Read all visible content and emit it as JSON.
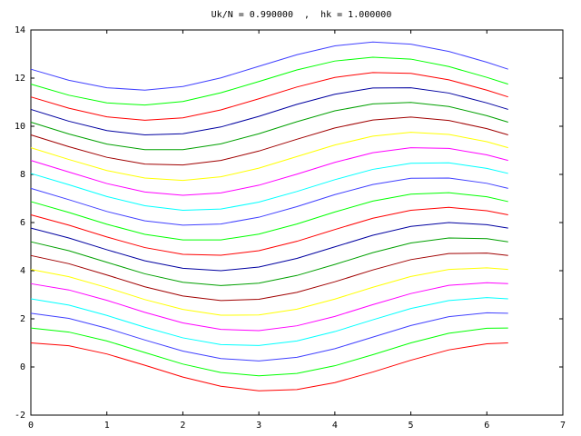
{
  "chart_data": {
    "type": "line",
    "title": "Uk/N = 0.990000  ,  hk = 1.000000",
    "x": [
      0,
      0.5,
      1,
      1.5,
      2,
      2.5,
      3,
      3.5,
      4,
      4.5,
      5,
      5.5,
      6,
      6.28
    ],
    "xlim": [
      0,
      7
    ],
    "xticks": [
      0,
      1,
      2,
      3,
      4,
      5,
      6,
      7
    ],
    "ylim": [
      -2,
      14
    ],
    "yticks": [
      -2,
      0,
      2,
      4,
      6,
      8,
      10,
      12,
      14
    ],
    "series": [
      {
        "color": "#ff0000",
        "values": [
          1.0,
          0.88,
          0.54,
          0.07,
          -0.42,
          -0.8,
          -0.99,
          -0.94,
          -0.65,
          -0.21,
          0.28,
          0.71,
          0.96,
          1.0
        ]
      },
      {
        "color": "#00ff00",
        "values": [
          1.62,
          1.45,
          1.08,
          0.6,
          0.12,
          -0.23,
          -0.37,
          -0.27,
          0.05,
          0.51,
          1.0,
          1.4,
          1.61,
          1.62
        ]
      },
      {
        "color": "#4040ff",
        "values": [
          2.23,
          2.02,
          1.61,
          1.12,
          0.66,
          0.35,
          0.25,
          0.4,
          0.76,
          1.24,
          1.72,
          2.09,
          2.25,
          2.23
        ]
      },
      {
        "color": "#00ffff",
        "values": [
          2.83,
          2.57,
          2.14,
          1.65,
          1.21,
          0.93,
          0.89,
          1.08,
          1.47,
          1.96,
          2.43,
          2.76,
          2.88,
          2.83
        ]
      },
      {
        "color": "#ff00ff",
        "values": [
          3.46,
          3.2,
          2.77,
          2.27,
          1.83,
          1.56,
          1.51,
          1.71,
          2.1,
          2.59,
          3.05,
          3.39,
          3.5,
          3.46
        ]
      },
      {
        "color": "#ffff00",
        "values": [
          4.05,
          3.75,
          3.3,
          2.8,
          2.39,
          2.15,
          2.16,
          2.4,
          2.82,
          3.31,
          3.76,
          4.05,
          4.12,
          4.05
        ]
      },
      {
        "color": "#a00000",
        "values": [
          4.63,
          4.29,
          3.82,
          3.33,
          2.95,
          2.76,
          2.81,
          3.1,
          3.54,
          4.03,
          4.46,
          4.71,
          4.73,
          4.63
        ]
      },
      {
        "color": "#00a000",
        "values": [
          5.2,
          4.83,
          4.35,
          3.87,
          3.52,
          3.38,
          3.48,
          3.8,
          4.26,
          4.75,
          5.15,
          5.36,
          5.33,
          5.2
        ]
      },
      {
        "color": "#0000a0",
        "values": [
          5.77,
          5.36,
          4.87,
          4.41,
          4.1,
          4.0,
          4.15,
          4.51,
          4.99,
          5.47,
          5.84,
          6.0,
          5.91,
          5.77
        ]
      },
      {
        "color": "#ff0000",
        "values": [
          6.32,
          5.89,
          5.4,
          4.96,
          4.68,
          4.64,
          4.83,
          5.22,
          5.71,
          6.18,
          6.51,
          6.63,
          6.49,
          6.32
        ]
      },
      {
        "color": "#00ff00",
        "values": [
          6.87,
          6.42,
          5.93,
          5.51,
          5.28,
          5.28,
          5.52,
          5.94,
          6.44,
          6.89,
          7.18,
          7.24,
          7.07,
          6.87
        ]
      },
      {
        "color": "#4040ff",
        "values": [
          7.42,
          6.95,
          6.46,
          6.07,
          5.89,
          5.94,
          6.22,
          6.66,
          7.16,
          7.58,
          7.84,
          7.85,
          7.63,
          7.42
        ]
      },
      {
        "color": "#00ffff",
        "values": [
          8.04,
          7.57,
          7.08,
          6.7,
          6.51,
          6.56,
          6.85,
          7.29,
          7.78,
          8.21,
          8.46,
          8.48,
          8.25,
          8.04
        ]
      },
      {
        "color": "#ff00ff",
        "values": [
          8.58,
          8.1,
          7.62,
          7.27,
          7.13,
          7.23,
          7.55,
          8.01,
          8.5,
          8.9,
          9.11,
          9.08,
          8.81,
          8.58
        ]
      },
      {
        "color": "#ffff00",
        "values": [
          9.11,
          8.62,
          8.16,
          7.85,
          7.75,
          7.9,
          8.26,
          8.74,
          9.22,
          9.59,
          9.75,
          9.66,
          9.36,
          9.11
        ]
      },
      {
        "color": "#a00000",
        "values": [
          9.64,
          9.15,
          8.71,
          8.43,
          8.39,
          8.58,
          8.97,
          9.46,
          9.93,
          10.26,
          10.38,
          10.24,
          9.9,
          9.64
        ]
      },
      {
        "color": "#00a000",
        "values": [
          10.17,
          9.68,
          9.26,
          9.03,
          9.03,
          9.27,
          9.69,
          10.19,
          10.64,
          10.93,
          10.99,
          10.82,
          10.44,
          10.17
        ]
      },
      {
        "color": "#0000a0",
        "values": [
          10.7,
          10.21,
          9.82,
          9.64,
          9.69,
          9.97,
          10.41,
          10.91,
          11.33,
          11.59,
          11.6,
          11.38,
          10.97,
          10.7
        ]
      },
      {
        "color": "#ff0000",
        "values": [
          11.22,
          10.75,
          10.39,
          10.25,
          10.35,
          10.68,
          11.14,
          11.63,
          12.03,
          12.23,
          12.2,
          11.93,
          11.5,
          11.22
        ]
      },
      {
        "color": "#00ff00",
        "values": [
          11.75,
          11.29,
          10.97,
          10.88,
          11.03,
          11.39,
          11.86,
          12.34,
          12.71,
          12.87,
          12.79,
          12.48,
          12.03,
          11.75
        ]
      },
      {
        "color": "#4040ff",
        "values": [
          12.37,
          11.91,
          11.6,
          11.5,
          11.65,
          12.01,
          12.49,
          12.97,
          13.34,
          13.5,
          13.41,
          13.11,
          12.66,
          12.37
        ]
      }
    ]
  }
}
